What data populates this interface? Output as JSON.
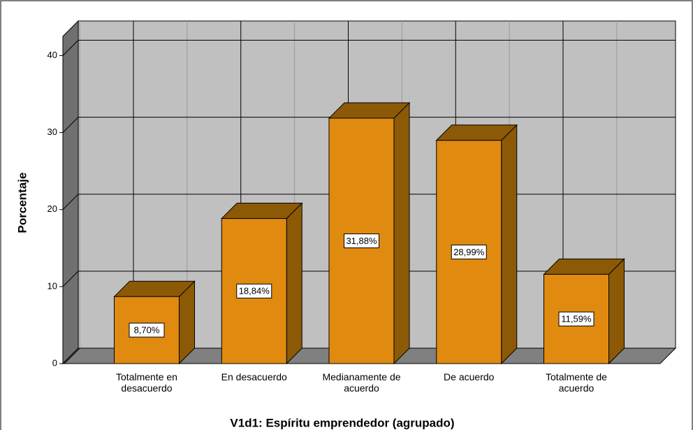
{
  "chart_data": {
    "type": "bar3d",
    "xlabel": "V1d1: Espíritu emprendedor (agrupado)",
    "ylabel": "Porcentaje",
    "categories": [
      "Totalmente en desacuerdo",
      "En desacuerdo",
      "Medianamente de acuerdo",
      "De acuerdo",
      "Totalmente de acuerdo"
    ],
    "values": [
      8.7,
      18.84,
      31.88,
      28.99,
      11.59
    ],
    "value_labels": [
      "8,70%",
      "18,84%",
      "31,88%",
      "28,99%",
      "11,59%"
    ],
    "color": "#e08a10",
    "ylim": [
      0,
      42.5
    ],
    "yticks": [
      0,
      10,
      20,
      30,
      40
    ],
    "grid": true
  }
}
